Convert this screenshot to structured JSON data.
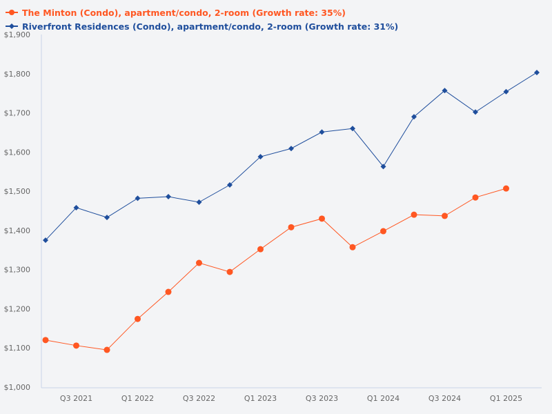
{
  "chart_data": {
    "type": "line",
    "categories": [
      "Q2 2021",
      "Q3 2021",
      "Q4 2021",
      "Q1 2022",
      "Q2 2022",
      "Q3 2022",
      "Q4 2022",
      "Q1 2023",
      "Q2 2023",
      "Q3 2023",
      "Q4 2023",
      "Q1 2024",
      "Q2 2024",
      "Q3 2024",
      "Q4 2024",
      "Q1 2025",
      "Q2 2025"
    ],
    "x_tick_labels": [
      "Q3 2021",
      "Q1 2022",
      "Q3 2022",
      "Q1 2023",
      "Q3 2023",
      "Q1 2024",
      "Q3 2024",
      "Q1 2025"
    ],
    "y_tick_labels": [
      "$1,000",
      "$1,100",
      "$1,200",
      "$1,300",
      "$1,400",
      "$1,500",
      "$1,600",
      "$1,700",
      "$1,800",
      "$1,900"
    ],
    "ylim": [
      1000,
      1900
    ],
    "grid": false,
    "legend_position": "top-left",
    "series": [
      {
        "name": "The Minton (Condo), apartment/condo, 2-room (Growth rate: 35%)",
        "color": "#ff5722",
        "marker": "circle",
        "values": [
          1120,
          1106,
          1095,
          1174,
          1243,
          1317,
          1294,
          1352,
          1408,
          1430,
          1357,
          1398,
          1440,
          1437,
          1484,
          1507,
          null
        ]
      },
      {
        "name": "Riverfront Residences (Condo), apartment/condo, 2-room (Growth rate: 31%)",
        "color": "#1f4e9c",
        "marker": "diamond",
        "values": [
          1375,
          1458,
          1433,
          1482,
          1486,
          1472,
          1516,
          1588,
          1609,
          1651,
          1660,
          1563,
          1690,
          1757,
          1702,
          1754,
          1803
        ]
      }
    ]
  }
}
